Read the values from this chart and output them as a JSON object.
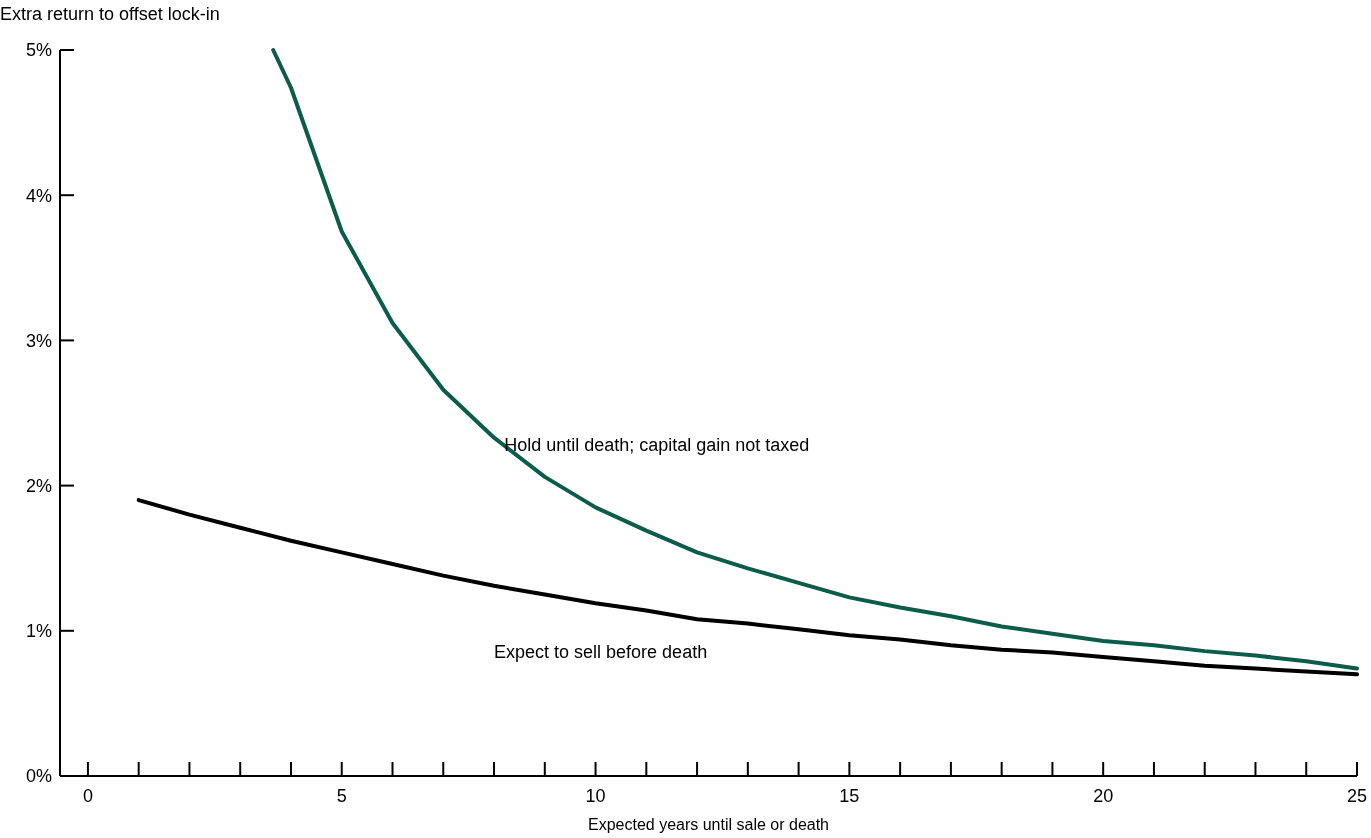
{
  "chart_data": {
    "type": "line",
    "xlabel": "Expected years until sale or death",
    "ylabel": "Extra return to offset lock-in",
    "xlim": [
      -0.55,
      25
    ],
    "ylim": [
      0,
      5
    ],
    "xticks": [
      0,
      {
        "value": 1,
        "label": null
      },
      {
        "value": 2,
        "label": null
      },
      {
        "value": 3,
        "label": null
      },
      {
        "value": 4,
        "label": null
      },
      5,
      {
        "value": 6,
        "label": null
      },
      {
        "value": 7,
        "label": null
      },
      {
        "value": 8,
        "label": null
      },
      {
        "value": 9,
        "label": null
      },
      10,
      {
        "value": 11,
        "label": null
      },
      {
        "value": 12,
        "label": null
      },
      {
        "value": 13,
        "label": null
      },
      {
        "value": 14,
        "label": null
      },
      15,
      {
        "value": 16,
        "label": null
      },
      {
        "value": 17,
        "label": null
      },
      {
        "value": 18,
        "label": null
      },
      {
        "value": 19,
        "label": null
      },
      20,
      {
        "value": 21,
        "label": null
      },
      {
        "value": 22,
        "label": null
      },
      {
        "value": 23,
        "label": null
      },
      {
        "value": 24,
        "label": null
      },
      25
    ],
    "yticks": [
      {
        "value": 0,
        "label": "0%"
      },
      {
        "value": 1,
        "label": "1%"
      },
      {
        "value": 2,
        "label": "2%"
      },
      {
        "value": 3,
        "label": "3%"
      },
      {
        "value": 4,
        "label": "4%"
      },
      {
        "value": 5,
        "label": "5%"
      }
    ],
    "grid": false,
    "legend": false,
    "marker": "none",
    "line_style": "solid",
    "series": [
      {
        "name": "Hold until death; capital gain not taxed",
        "color": "#0b5c4a",
        "x": [
          3.65,
          4,
          5,
          6,
          7,
          8,
          9,
          10,
          11,
          12,
          13,
          14,
          15,
          16,
          17,
          18,
          19,
          20,
          21,
          22,
          23,
          24,
          25
        ],
        "values": [
          5,
          4.74,
          3.75,
          3.12,
          2.66,
          2.33,
          2.06,
          1.85,
          1.69,
          1.54,
          1.43,
          1.33,
          1.23,
          1.16,
          1.1,
          1.03,
          0.98,
          0.93,
          0.9,
          0.86,
          0.83,
          0.79,
          0.74
        ]
      },
      {
        "name": "Expect to sell before death",
        "color": "#000000",
        "x": [
          1,
          2,
          3,
          4,
          5,
          6,
          7,
          8,
          9,
          10,
          11,
          12,
          13,
          14,
          15,
          16,
          17,
          18,
          19,
          20,
          21,
          22,
          23,
          24,
          25
        ],
        "values": [
          1.9,
          1.8,
          1.71,
          1.62,
          1.54,
          1.46,
          1.38,
          1.31,
          1.25,
          1.19,
          1.14,
          1.08,
          1.05,
          1.01,
          0.97,
          0.94,
          0.9,
          0.87,
          0.85,
          0.82,
          0.79,
          0.76,
          0.74,
          0.72,
          0.7
        ]
      }
    ]
  }
}
